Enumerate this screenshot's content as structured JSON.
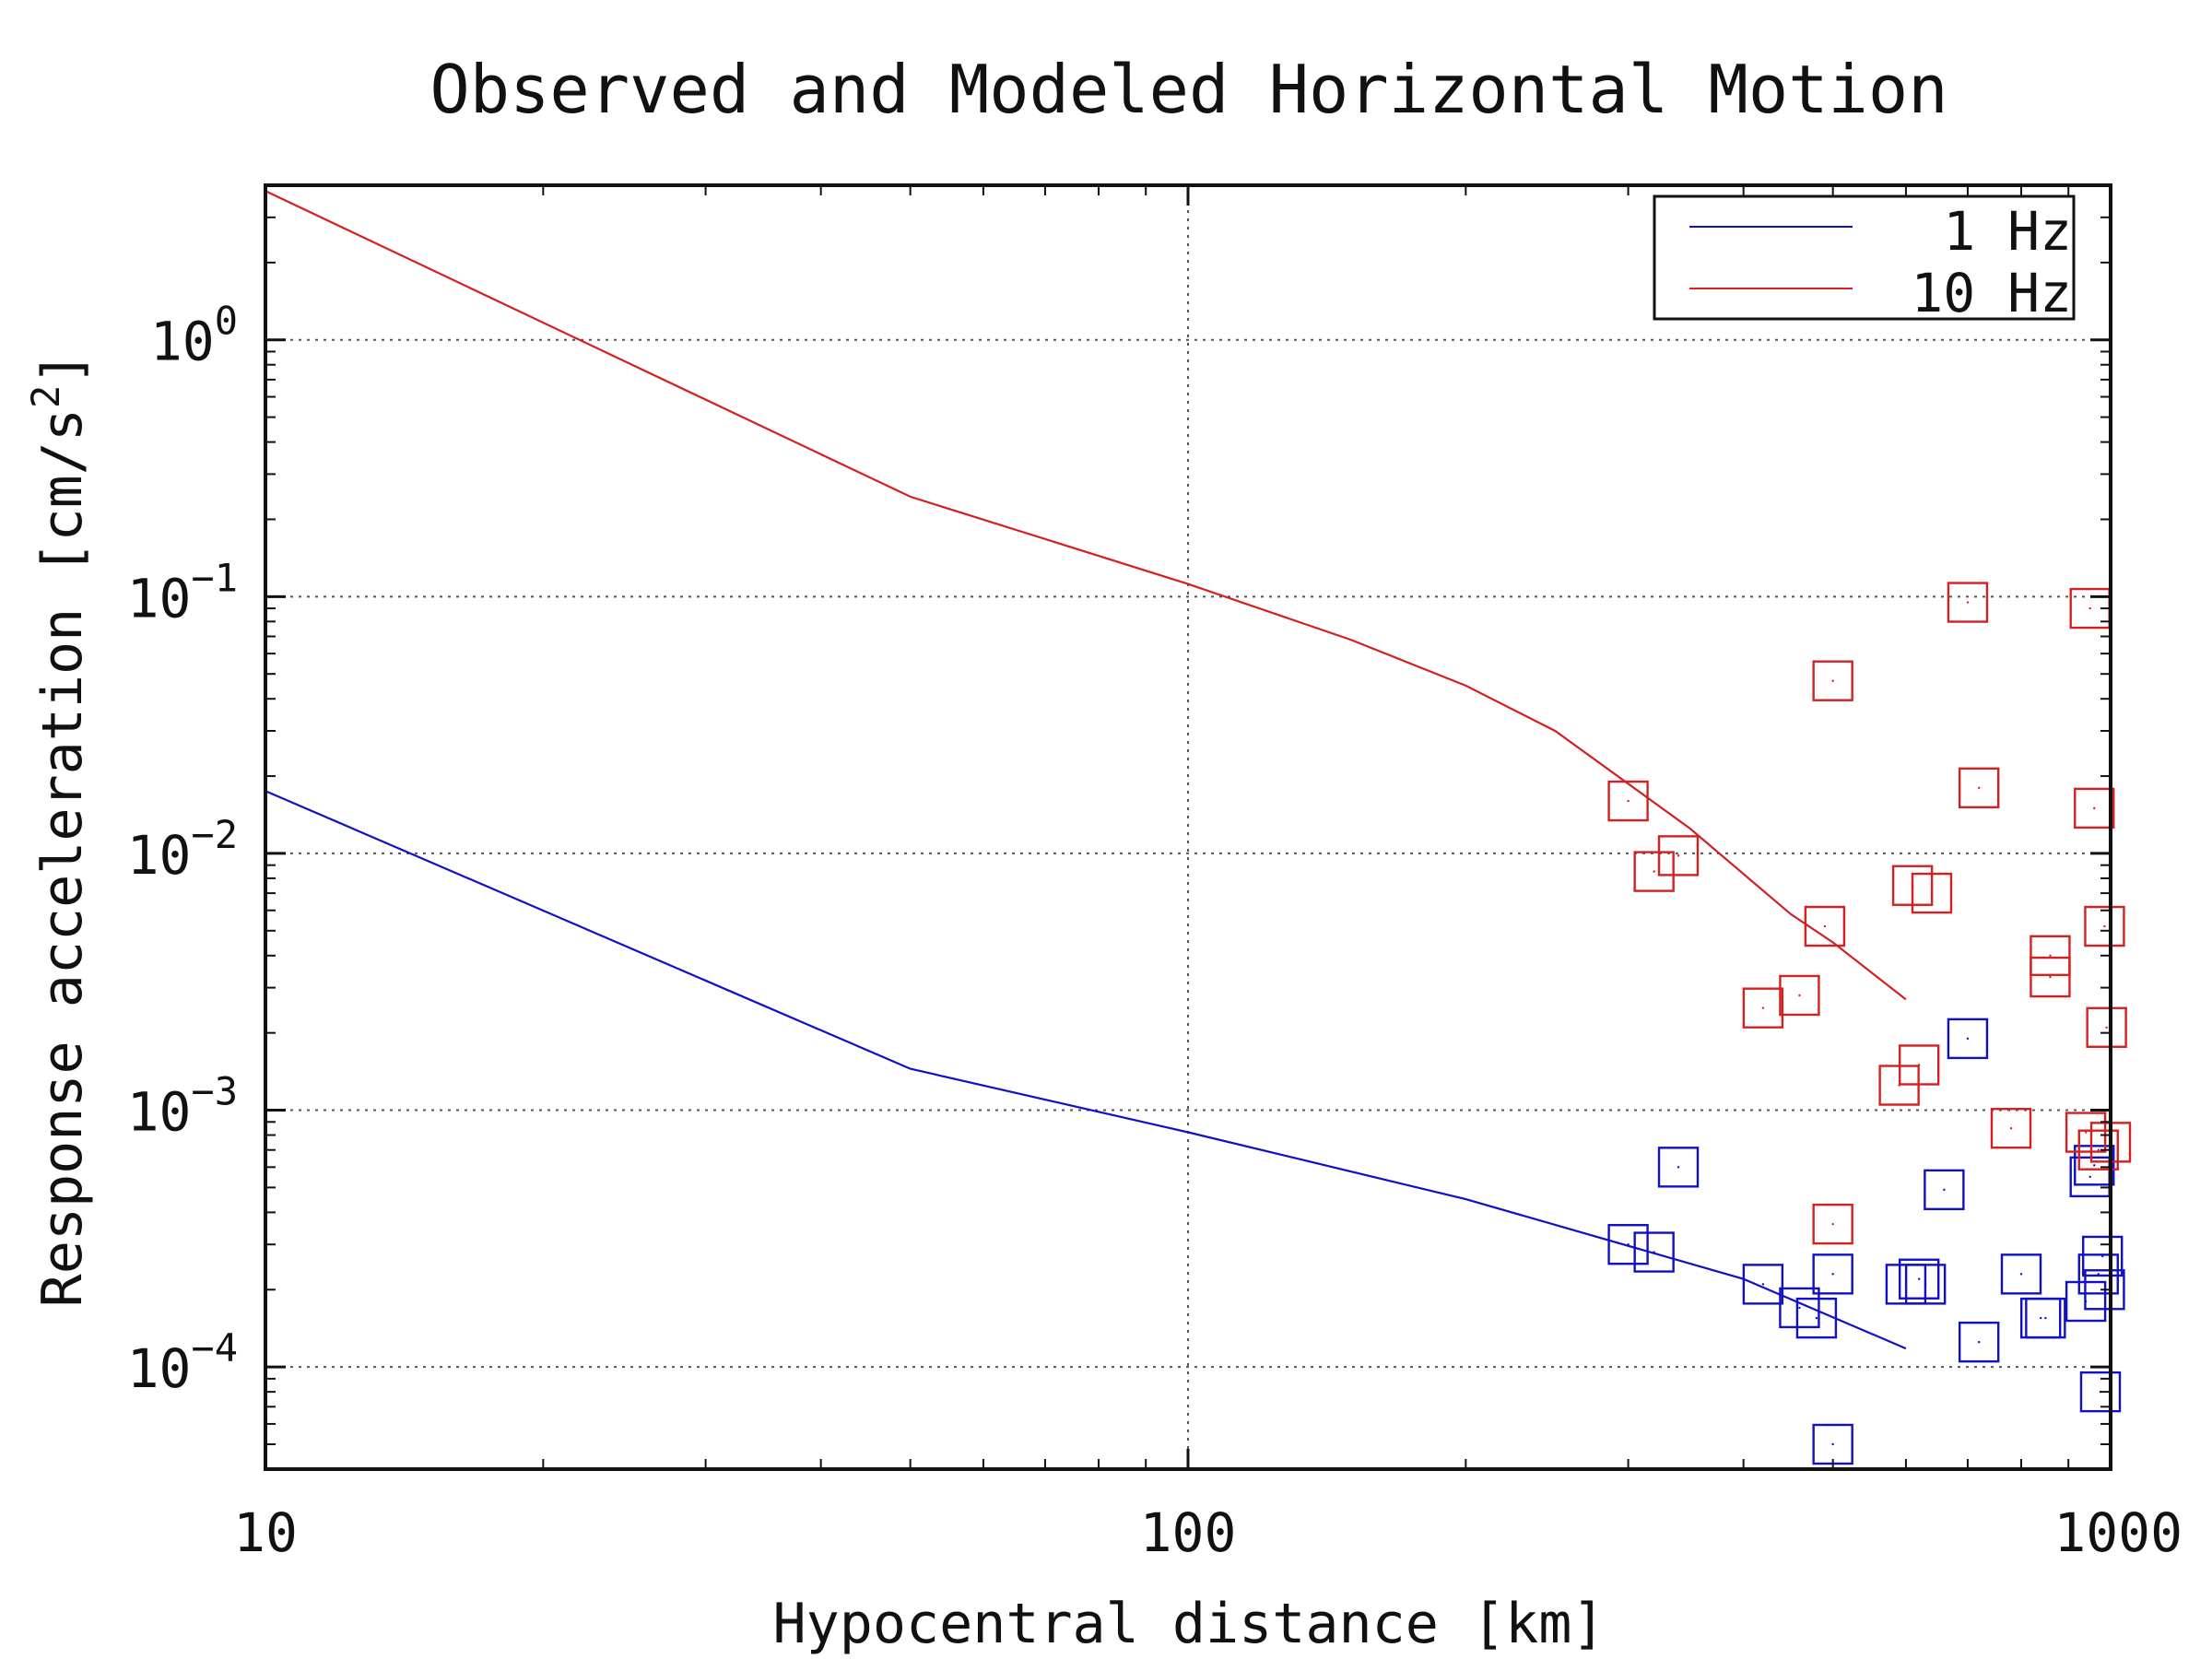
{
  "chart_data": {
    "type": "scatter",
    "title": "Observed and Modeled Horizontal Motion",
    "xlabel": "Hypocentral distance [km]",
    "ylabel": "Response acceleration [cm/s",
    "ylabel_sup": "2",
    "ylabel_close": "]",
    "x_scale": "log",
    "y_scale": "log",
    "xlim": [
      10,
      1000
    ],
    "ylim": [
      4e-05,
      4.0
    ],
    "x_ticks": [
      {
        "value": 10,
        "label": "10"
      },
      {
        "value": 100,
        "label": "100"
      },
      {
        "value": 1000,
        "label": "1000"
      }
    ],
    "y_ticks": [
      {
        "value": 1.0,
        "base": "10",
        "exp": "0"
      },
      {
        "value": 0.1,
        "base": "10",
        "exp": "−1"
      },
      {
        "value": 0.01,
        "base": "10",
        "exp": "−2"
      },
      {
        "value": 0.001,
        "base": "10",
        "exp": "−3"
      },
      {
        "value": 0.0001,
        "base": "10",
        "exp": "−4"
      }
    ],
    "grid": true,
    "legend_position": "top-right",
    "series": [
      {
        "name": "1 Hz",
        "color": "#1010c8",
        "line": [
          [
            10,
            0.0175
          ],
          [
            50,
            0.00145
          ],
          [
            100,
            0.00082
          ],
          [
            200,
            0.00045
          ],
          [
            400,
            0.00022
          ],
          [
            600,
            0.000118
          ]
        ],
        "points": [
          [
            300,
            0.0003
          ],
          [
            320,
            0.00028
          ],
          [
            340,
            0.0006
          ],
          [
            420,
            0.00021
          ],
          [
            460,
            0.00017
          ],
          [
            480,
            0.000155
          ],
          [
            500,
            0.00023
          ],
          [
            500,
            5e-05
          ],
          [
            600,
            0.00021
          ],
          [
            620,
            0.00022
          ],
          [
            630,
            0.00021
          ],
          [
            660,
            0.00049
          ],
          [
            700,
            0.0019
          ],
          [
            720,
            0.000125
          ],
          [
            800,
            0.00023
          ],
          [
            840,
            0.000155
          ],
          [
            850,
            0.000155
          ],
          [
            940,
            0.00018
          ],
          [
            950,
            0.00055
          ],
          [
            960,
            0.00061
          ],
          [
            970,
            0.00023
          ],
          [
            975,
            8e-05
          ],
          [
            980,
            0.00027
          ],
          [
            985,
            0.0002
          ]
        ]
      },
      {
        "name": "10 Hz",
        "color": "#d42020",
        "line": [
          [
            10,
            3.8
          ],
          [
            50,
            0.245
          ],
          [
            100,
            0.112
          ],
          [
            150,
            0.068
          ],
          [
            200,
            0.045
          ],
          [
            250,
            0.03
          ],
          [
            350,
            0.0125
          ],
          [
            450,
            0.0058
          ],
          [
            500,
            0.0045
          ],
          [
            600,
            0.0027
          ]
        ],
        "points": [
          [
            300,
            0.016
          ],
          [
            320,
            0.0085
          ],
          [
            340,
            0.0098
          ],
          [
            420,
            0.0025
          ],
          [
            460,
            0.0028
          ],
          [
            490,
            0.0052
          ],
          [
            500,
            0.00036
          ],
          [
            500,
            0.047
          ],
          [
            590,
            0.00125
          ],
          [
            610,
            0.0075
          ],
          [
            620,
            0.0015
          ],
          [
            640,
            0.007
          ],
          [
            700,
            0.095
          ],
          [
            720,
            0.018
          ],
          [
            780,
            0.00085
          ],
          [
            860,
            0.004
          ],
          [
            860,
            0.0033
          ],
          [
            940,
            0.00082
          ],
          [
            950,
            0.09
          ],
          [
            960,
            0.015
          ],
          [
            970,
            0.0007
          ],
          [
            985,
            0.0052
          ],
          [
            990,
            0.0021
          ],
          [
            1000,
            0.00075
          ]
        ]
      }
    ]
  }
}
